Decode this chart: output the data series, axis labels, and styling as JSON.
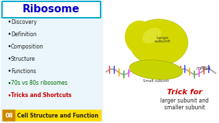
{
  "title": "Ribosome",
  "bullet_items": [
    {
      "text": "Discovery",
      "color": "#222222"
    },
    {
      "text": "Definition",
      "color": "#222222"
    },
    {
      "text": "Composition",
      "color": "#222222"
    },
    {
      "text": "Structure",
      "color": "#222222"
    },
    {
      "text": "Functions",
      "color": "#222222"
    },
    {
      "text": "70s vs 80s ribosomes",
      "color": "#006600"
    },
    {
      "text": "Tricks and Shortcuts",
      "color": "#cc0000"
    }
  ],
  "badge_num": "08",
  "badge_label": "Cell Structure and Function",
  "badge_bg": "#ffdd00",
  "badge_num_bg": "#cc8800",
  "right_trick_line1": "Trick for",
  "right_trick_line2": "larger subunit and",
  "right_trick_line3": "smaller subunit",
  "bg_color": "#ffffff",
  "left_bg": "#f0f8ff",
  "title_color": "#0000cc",
  "title_box_color": "#00aacc",
  "mrna_label": "mRNA",
  "large_label": "Large\nsubunit",
  "small_label": "Small subunit"
}
